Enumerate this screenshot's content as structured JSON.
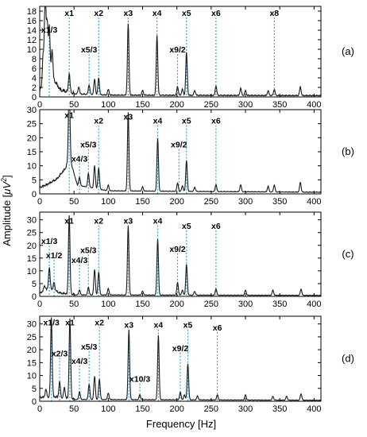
{
  "figure": {
    "xlabel": "Frequency [Hz]",
    "ylabel_prefix": "Amplitude [",
    "ylabel_mu": "μ",
    "ylabel_V": "V",
    "ylabel_exp": "2",
    "ylabel_suffix": "]"
  },
  "colors": {
    "line": "#1a1a1a",
    "marker": "#2a9fd6",
    "frame": "#000000",
    "text": "#000000"
  },
  "chart_data": [
    {
      "type": "line",
      "panel_label": "(a)",
      "xlim": [
        0,
        410
      ],
      "ylim": [
        0,
        19
      ],
      "xticks": [
        0,
        50,
        100,
        150,
        200,
        250,
        300,
        350,
        400
      ],
      "yticks": [
        0,
        2,
        4,
        6,
        8,
        10,
        12,
        14,
        16,
        18
      ],
      "show_xtick_labels": true,
      "harmonics": [
        {
          "label": "x1/3",
          "x": 14,
          "label_y": 13.5
        },
        {
          "label": "x1",
          "x": 43,
          "label_y": 17
        },
        {
          "label": "x5/3",
          "x": 72,
          "label_y": 9.3
        },
        {
          "label": "x2",
          "x": 86,
          "label_y": 17
        },
        {
          "label": "x3",
          "x": 129,
          "label_y": 17
        },
        {
          "label": "x4",
          "x": 171,
          "label_y": 17
        },
        {
          "label": "x9/2",
          "x": 201,
          "label_y": 9.3
        },
        {
          "label": "x5",
          "x": 214,
          "label_y": 17
        },
        {
          "label": "x6",
          "x": 257,
          "label_y": 17
        },
        {
          "label": "x8",
          "x": 342,
          "label_y": 17
        }
      ],
      "peaks": [
        [
          5,
          5.5
        ],
        [
          8,
          18.2
        ],
        [
          11,
          10.5
        ],
        [
          14,
          10
        ],
        [
          18,
          6
        ],
        [
          43,
          4
        ],
        [
          57,
          1.5
        ],
        [
          72,
          2
        ],
        [
          80,
          3.2
        ],
        [
          86,
          3.5
        ],
        [
          100,
          1.2
        ],
        [
          129,
          15
        ],
        [
          150,
          1
        ],
        [
          171,
          12.5
        ],
        [
          201,
          1.8
        ],
        [
          208,
          1.3
        ],
        [
          214,
          9
        ],
        [
          226,
          1
        ],
        [
          257,
          2
        ],
        [
          293,
          1.5
        ],
        [
          300,
          1
        ],
        [
          333,
          1
        ],
        [
          342,
          1.3
        ],
        [
          380,
          1.8
        ]
      ],
      "noise_floor": [
        [
          0,
          1
        ],
        [
          10,
          5
        ],
        [
          20,
          3.5
        ],
        [
          30,
          1.2
        ],
        [
          45,
          0.6
        ],
        [
          100,
          0.3
        ],
        [
          410,
          0.2
        ]
      ]
    },
    {
      "type": "line",
      "panel_label": "(b)",
      "xlim": [
        0,
        410
      ],
      "ylim": [
        0,
        30
      ],
      "xticks": [
        0,
        50,
        100,
        150,
        200,
        250,
        300,
        350,
        400
      ],
      "yticks": [
        0,
        5,
        10,
        15,
        20,
        25,
        30
      ],
      "show_xtick_labels": true,
      "harmonics": [
        {
          "label": "x4/3",
          "x": 58,
          "label_y": 11.5
        },
        {
          "label": "x1",
          "x": 43,
          "label_y": 27
        },
        {
          "label": "x5/3",
          "x": 71,
          "label_y": 16.5
        },
        {
          "label": "x2",
          "x": 86,
          "label_y": 25
        },
        {
          "label": "x3",
          "x": 129,
          "label_y": 26.5
        },
        {
          "label": "x4",
          "x": 172,
          "label_y": 25
        },
        {
          "label": "x9/2",
          "x": 203,
          "label_y": 16.5
        },
        {
          "label": "x5",
          "x": 214,
          "label_y": 25
        },
        {
          "label": "x6",
          "x": 257,
          "label_y": 25
        }
      ],
      "peaks": [
        [
          43,
          28
        ],
        [
          58,
          3
        ],
        [
          71,
          5
        ],
        [
          80,
          8
        ],
        [
          86,
          7.5
        ],
        [
          100,
          2
        ],
        [
          129,
          28
        ],
        [
          150,
          1.5
        ],
        [
          172,
          19
        ],
        [
          201,
          3
        ],
        [
          208,
          2
        ],
        [
          214,
          11
        ],
        [
          226,
          1.5
        ],
        [
          257,
          2.5
        ],
        [
          293,
          2.5
        ],
        [
          333,
          2
        ],
        [
          342,
          2.5
        ],
        [
          380,
          3.5
        ]
      ],
      "noise_floor": [
        [
          0,
          2
        ],
        [
          10,
          3
        ],
        [
          25,
          5
        ],
        [
          38,
          9
        ],
        [
          43,
          13
        ],
        [
          55,
          3
        ],
        [
          100,
          1
        ],
        [
          410,
          0.5
        ]
      ]
    },
    {
      "type": "line",
      "panel_label": "(c)",
      "xlim": [
        0,
        410
      ],
      "ylim": [
        0,
        33
      ],
      "xticks": [
        0,
        50,
        100,
        150,
        200,
        250,
        300,
        350,
        400
      ],
      "yticks": [
        0,
        5,
        10,
        15,
        20,
        25,
        30
      ],
      "show_xtick_labels": true,
      "harmonics": [
        {
          "label": "x1/3",
          "x": 14,
          "label_y": 20.5
        },
        {
          "label": "x1/2",
          "x": 21,
          "label_y": 15
        },
        {
          "label": "x4/3",
          "x": 58,
          "label_y": 13
        },
        {
          "label": "x1",
          "x": 43,
          "label_y": 28.5
        },
        {
          "label": "x5/3",
          "x": 71,
          "label_y": 17
        },
        {
          "label": "x2",
          "x": 86,
          "label_y": 28.5
        },
        {
          "label": "x3",
          "x": 129,
          "label_y": 28.5
        },
        {
          "label": "x4",
          "x": 172,
          "label_y": 28.5
        },
        {
          "label": "x9/2",
          "x": 201,
          "label_y": 17.5
        },
        {
          "label": "x5",
          "x": 214,
          "label_y": 26.5
        },
        {
          "label": "x6",
          "x": 257,
          "label_y": 26.5
        }
      ],
      "peaks": [
        [
          7,
          2
        ],
        [
          14,
          8
        ],
        [
          21,
          3
        ],
        [
          43,
          31
        ],
        [
          58,
          2
        ],
        [
          71,
          3
        ],
        [
          80,
          10
        ],
        [
          86,
          9
        ],
        [
          100,
          2.5
        ],
        [
          129,
          27
        ],
        [
          150,
          1.5
        ],
        [
          172,
          22
        ],
        [
          201,
          5
        ],
        [
          208,
          2
        ],
        [
          214,
          12
        ],
        [
          226,
          1.5
        ],
        [
          257,
          2.5
        ],
        [
          300,
          2
        ],
        [
          340,
          2
        ],
        [
          381,
          2.5
        ]
      ],
      "noise_floor": [
        [
          0,
          1
        ],
        [
          14,
          3
        ],
        [
          30,
          1
        ],
        [
          50,
          0.5
        ],
        [
          410,
          0.3
        ]
      ]
    },
    {
      "type": "line",
      "panel_label": "(d)",
      "xlim": [
        0,
        410
      ],
      "ylim": [
        0,
        33
      ],
      "xticks": [
        0,
        50,
        100,
        150,
        200,
        250,
        300,
        350,
        400
      ],
      "yticks": [
        0,
        5,
        10,
        15,
        20,
        25,
        30
      ],
      "show_xtick_labels": true,
      "harmonics": [
        {
          "label": "x1/3",
          "x": 17,
          "label_y": 29.5
        },
        {
          "label": "x2/3",
          "x": 29,
          "label_y": 17.5
        },
        {
          "label": "x1",
          "x": 44,
          "label_y": 29.5
        },
        {
          "label": "x4/3",
          "x": 58,
          "label_y": 14.5
        },
        {
          "label": "x5/3",
          "x": 72,
          "label_y": 20
        },
        {
          "label": "x2",
          "x": 87,
          "label_y": 29.5
        },
        {
          "label": "x3",
          "x": 130,
          "label_y": 28.5
        },
        {
          "label": "x10/3",
          "x": 146,
          "label_y": 7.5
        },
        {
          "label": "x4",
          "x": 173,
          "label_y": 28.5
        },
        {
          "label": "x9/2",
          "x": 205,
          "label_y": 19.5
        },
        {
          "label": "x5",
          "x": 216,
          "label_y": 28.5
        },
        {
          "label": "x6",
          "x": 259,
          "label_y": 27.5
        }
      ],
      "peaks": [
        [
          9,
          3
        ],
        [
          17,
          31
        ],
        [
          29,
          6
        ],
        [
          36,
          4
        ],
        [
          44,
          31
        ],
        [
          58,
          3
        ],
        [
          72,
          6
        ],
        [
          80,
          9
        ],
        [
          87,
          8
        ],
        [
          100,
          2.5
        ],
        [
          130,
          27
        ],
        [
          146,
          2
        ],
        [
          173,
          25
        ],
        [
          205,
          3
        ],
        [
          211,
          2
        ],
        [
          216,
          14
        ],
        [
          230,
          1.5
        ],
        [
          259,
          2
        ],
        [
          300,
          2
        ],
        [
          340,
          1.5
        ],
        [
          360,
          1.5
        ],
        [
          381,
          2.5
        ]
      ],
      "noise_floor": [
        [
          0,
          1.2
        ],
        [
          20,
          1.5
        ],
        [
          50,
          0.6
        ],
        [
          410,
          0.3
        ]
      ]
    }
  ]
}
